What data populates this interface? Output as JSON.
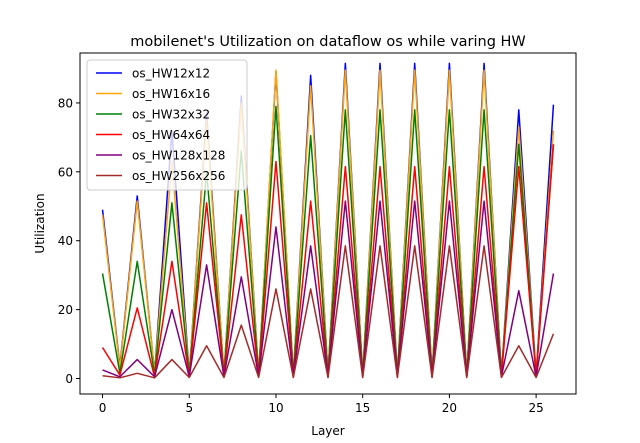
{
  "chart_data": {
    "type": "line",
    "title": "mobilenet's Utilization on dataflow os while varing HW",
    "xlabel": "Layer",
    "ylabel": "Utilization",
    "xlim": [
      -1.3,
      27.3
    ],
    "ylim": [
      -4.5,
      94.5
    ],
    "xticks": [
      0,
      5,
      10,
      15,
      20,
      25
    ],
    "yticks": [
      0,
      20,
      40,
      60,
      80
    ],
    "legend_position": "top-left",
    "x": [
      0,
      1,
      2,
      3,
      4,
      5,
      6,
      7,
      8,
      9,
      10,
      11,
      12,
      13,
      14,
      15,
      16,
      17,
      18,
      19,
      20,
      21,
      22,
      23,
      24,
      25,
      26
    ],
    "series": [
      {
        "name": "os_HW12x12",
        "color": "#0000ff",
        "values": [
          49,
          3.5,
          53,
          1.5,
          72,
          1,
          77,
          1,
          82,
          1,
          89,
          1,
          88,
          1,
          91.5,
          1,
          91.5,
          1,
          91.5,
          1,
          91.5,
          1,
          91.5,
          1,
          78,
          1,
          79.5
        ]
      },
      {
        "name": "os_HW16x16",
        "color": "#ffa500",
        "values": [
          47.5,
          3,
          51.5,
          1.5,
          63,
          1,
          75,
          1,
          80,
          1,
          89.5,
          1,
          85,
          1,
          89.5,
          1,
          89.5,
          1,
          89.5,
          1,
          89.5,
          1,
          89.5,
          1,
          73,
          1,
          72
        ]
      },
      {
        "name": "os_HW32x32",
        "color": "#008000",
        "values": [
          30.5,
          1.5,
          34,
          1,
          51,
          1,
          60,
          1,
          66,
          1,
          79,
          1,
          70.5,
          1,
          78,
          1,
          78,
          1,
          78,
          1,
          78,
          1,
          78,
          1,
          68,
          1,
          68
        ]
      },
      {
        "name": "os_HW64x64",
        "color": "#ff0000",
        "values": [
          9,
          1,
          20.5,
          0.5,
          34,
          0.5,
          51,
          0.5,
          47.5,
          0.5,
          63,
          0.5,
          51.5,
          0.5,
          61.5,
          0.5,
          61.5,
          0.5,
          61.5,
          0.5,
          61.5,
          0.5,
          61.5,
          0.5,
          61.5,
          0.5,
          68
        ]
      },
      {
        "name": "os_HW128x128",
        "color": "#800080",
        "values": [
          2.5,
          0.5,
          5.5,
          0.5,
          20,
          0.5,
          33,
          0.5,
          29.5,
          0.5,
          44,
          0.5,
          38.5,
          0.5,
          51.5,
          0.5,
          51.5,
          0.5,
          51.5,
          0.5,
          51.5,
          0.5,
          51.5,
          0.5,
          25.5,
          0.5,
          30.5
        ]
      },
      {
        "name": "os_HW256x256",
        "color": "#a52a2a",
        "values": [
          0.8,
          0.2,
          1.5,
          0.2,
          5.5,
          0.3,
          9.5,
          0.3,
          15.5,
          0.3,
          26,
          0.3,
          26,
          0.3,
          38.5,
          0.3,
          38.5,
          0.3,
          38.5,
          0.3,
          38.5,
          0.3,
          38.5,
          0.3,
          9.5,
          0.3,
          13
        ]
      }
    ]
  }
}
